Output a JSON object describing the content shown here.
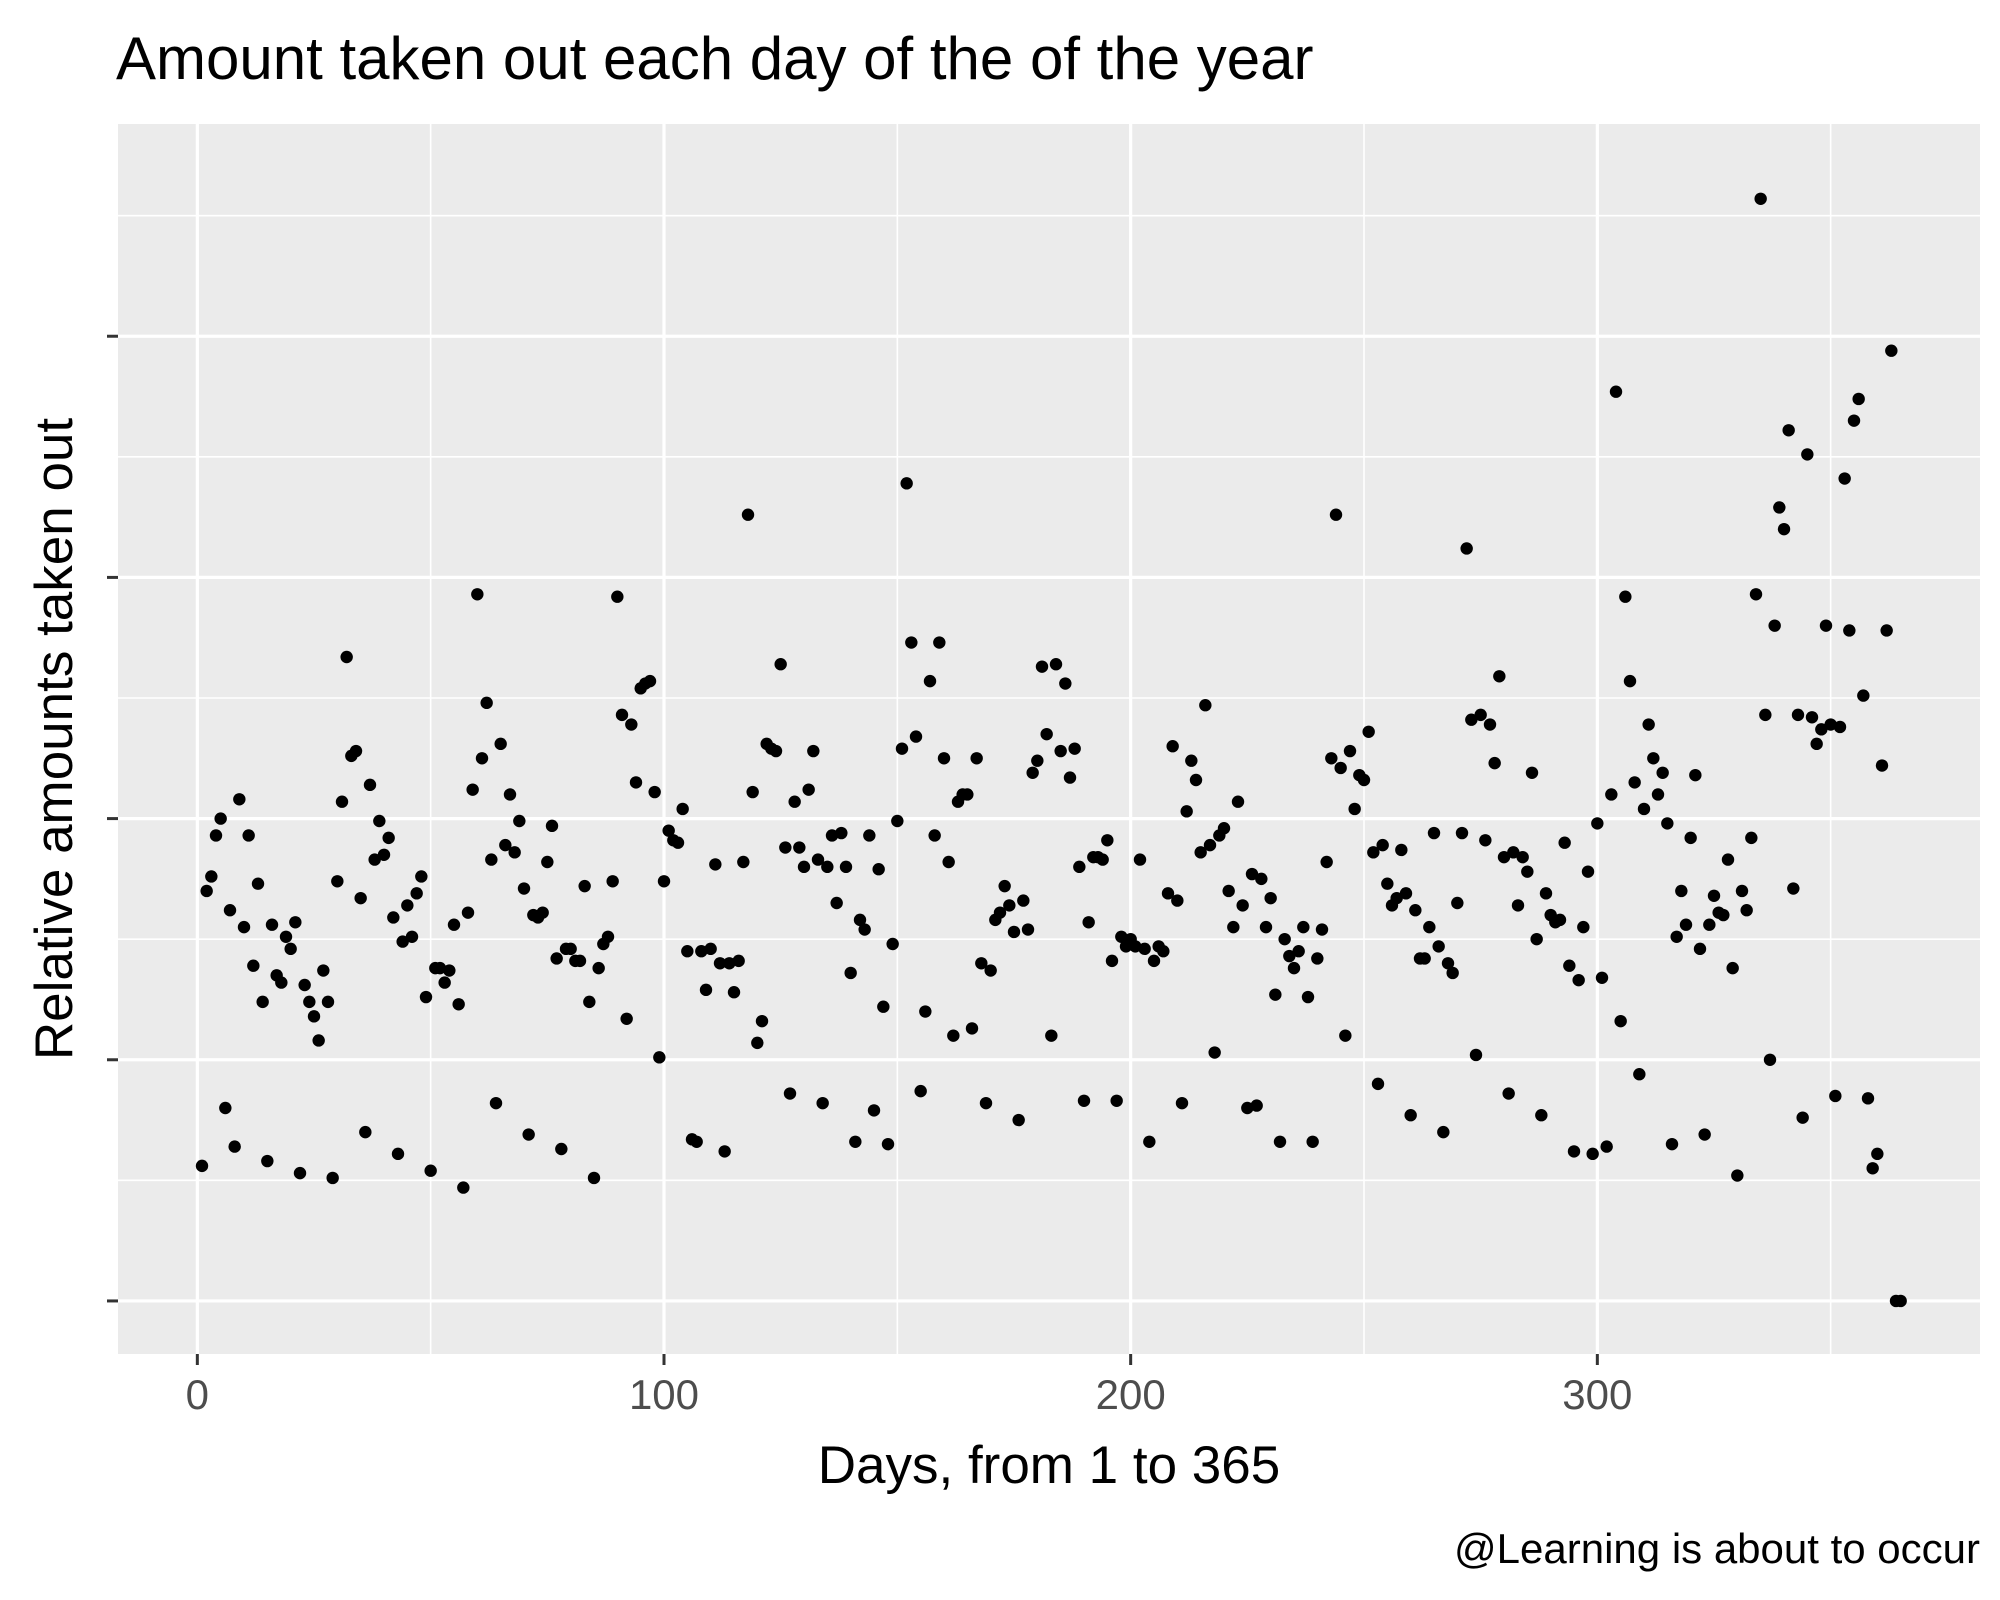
{
  "chart_data": {
    "type": "scatter",
    "title": "Amount taken out each day of the of the year",
    "xlabel": "Days, from 1 to 365",
    "ylabel": "Relative amounts taken out",
    "caption": "@Learning is about to occur",
    "xlim": [
      -17,
      382
    ],
    "ylim": [
      -0.22,
      4.88
    ],
    "x_ticks": [
      0,
      100,
      200,
      300
    ],
    "x_tick_labels": [
      "0",
      "100",
      "200",
      "300"
    ],
    "y_ticks": [
      0,
      1,
      2,
      3,
      4
    ],
    "y_tick_labels": [
      "",
      "",
      "",
      "",
      ""
    ],
    "grid": true,
    "legend": "none",
    "colors": {
      "panel": "#ebebeb",
      "grid": "#ffffff",
      "point": "#000000",
      "tick": "#333333"
    },
    "points": [
      [
        1,
        0.56
      ],
      [
        2,
        1.7
      ],
      [
        3,
        1.76
      ],
      [
        4,
        1.93
      ],
      [
        5,
        2.0
      ],
      [
        6,
        0.8
      ],
      [
        7,
        1.62
      ],
      [
        8,
        0.64
      ],
      [
        9,
        2.08
      ],
      [
        10,
        1.55
      ],
      [
        11,
        1.93
      ],
      [
        12,
        1.39
      ],
      [
        13,
        1.73
      ],
      [
        14,
        1.24
      ],
      [
        15,
        0.58
      ],
      [
        16,
        1.56
      ],
      [
        17,
        1.35
      ],
      [
        18,
        1.32
      ],
      [
        19,
        1.51
      ],
      [
        20,
        1.46
      ],
      [
        21,
        1.57
      ],
      [
        22,
        0.53
      ],
      [
        23,
        1.31
      ],
      [
        24,
        1.24
      ],
      [
        25,
        1.18
      ],
      [
        26,
        1.08
      ],
      [
        27,
        1.37
      ],
      [
        28,
        1.24
      ],
      [
        29,
        0.51
      ],
      [
        30,
        1.74
      ],
      [
        31,
        2.07
      ],
      [
        32,
        2.67
      ],
      [
        33,
        2.26
      ],
      [
        34,
        2.28
      ],
      [
        35,
        1.67
      ],
      [
        36,
        0.7
      ],
      [
        37,
        2.14
      ],
      [
        38,
        1.83
      ],
      [
        39,
        1.99
      ],
      [
        40,
        1.85
      ],
      [
        41,
        1.92
      ],
      [
        42,
        1.59
      ],
      [
        43,
        0.61
      ],
      [
        44,
        1.49
      ],
      [
        45,
        1.64
      ],
      [
        46,
        1.51
      ],
      [
        47,
        1.69
      ],
      [
        48,
        1.76
      ],
      [
        49,
        1.26
      ],
      [
        50,
        0.54
      ],
      [
        51,
        1.38
      ],
      [
        52,
        1.38
      ],
      [
        53,
        1.32
      ],
      [
        54,
        1.37
      ],
      [
        55,
        1.56
      ],
      [
        56,
        1.23
      ],
      [
        57,
        0.47
      ],
      [
        58,
        1.61
      ],
      [
        59,
        2.12
      ],
      [
        60,
        2.93
      ],
      [
        61,
        2.25
      ],
      [
        62,
        2.48
      ],
      [
        63,
        1.83
      ],
      [
        64,
        0.82
      ],
      [
        65,
        2.31
      ],
      [
        66,
        1.89
      ],
      [
        67,
        2.1
      ],
      [
        68,
        1.86
      ],
      [
        69,
        1.99
      ],
      [
        70,
        1.71
      ],
      [
        71,
        0.69
      ],
      [
        72,
        1.6
      ],
      [
        73,
        1.59
      ],
      [
        74,
        1.61
      ],
      [
        75,
        1.82
      ],
      [
        76,
        1.97
      ],
      [
        77,
        1.42
      ],
      [
        78,
        0.63
      ],
      [
        79,
        1.46
      ],
      [
        80,
        1.46
      ],
      [
        81,
        1.41
      ],
      [
        82,
        1.41
      ],
      [
        83,
        1.72
      ],
      [
        84,
        1.24
      ],
      [
        85,
        0.51
      ],
      [
        86,
        1.38
      ],
      [
        87,
        1.48
      ],
      [
        88,
        1.51
      ],
      [
        89,
        1.74
      ],
      [
        90,
        2.92
      ],
      [
        91,
        2.43
      ],
      [
        92,
        1.17
      ],
      [
        93,
        2.39
      ],
      [
        94,
        2.15
      ],
      [
        95,
        2.54
      ],
      [
        96,
        2.56
      ],
      [
        97,
        2.57
      ],
      [
        98,
        2.11
      ],
      [
        99,
        1.01
      ],
      [
        100,
        1.74
      ],
      [
        101,
        1.95
      ],
      [
        102,
        1.91
      ],
      [
        103,
        1.9
      ],
      [
        104,
        2.04
      ],
      [
        105,
        1.45
      ],
      [
        106,
        0.67
      ],
      [
        107,
        0.66
      ],
      [
        108,
        1.45
      ],
      [
        109,
        1.29
      ],
      [
        110,
        1.46
      ],
      [
        111,
        1.81
      ],
      [
        112,
        1.4
      ],
      [
        113,
        0.62
      ],
      [
        114,
        1.4
      ],
      [
        115,
        1.28
      ],
      [
        116,
        1.41
      ],
      [
        117,
        1.82
      ],
      [
        118,
        3.26
      ],
      [
        119,
        2.11
      ],
      [
        120,
        1.07
      ],
      [
        121,
        1.16
      ],
      [
        122,
        2.31
      ],
      [
        123,
        2.29
      ],
      [
        124,
        2.28
      ],
      [
        125,
        2.64
      ],
      [
        126,
        1.88
      ],
      [
        127,
        0.86
      ],
      [
        128,
        2.07
      ],
      [
        129,
        1.88
      ],
      [
        130,
        1.8
      ],
      [
        131,
        2.12
      ],
      [
        132,
        2.28
      ],
      [
        133,
        1.83
      ],
      [
        134,
        0.82
      ],
      [
        135,
        1.8
      ],
      [
        136,
        1.93
      ],
      [
        137,
        1.65
      ],
      [
        138,
        1.94
      ],
      [
        139,
        1.8
      ],
      [
        140,
        1.36
      ],
      [
        141,
        0.66
      ],
      [
        142,
        1.58
      ],
      [
        143,
        1.54
      ],
      [
        144,
        1.93
      ],
      [
        145,
        0.79
      ],
      [
        146,
        1.79
      ],
      [
        147,
        1.22
      ],
      [
        148,
        0.65
      ],
      [
        149,
        1.48
      ],
      [
        150,
        1.99
      ],
      [
        151,
        2.29
      ],
      [
        152,
        3.39
      ],
      [
        153,
        2.73
      ],
      [
        154,
        2.34
      ],
      [
        155,
        0.87
      ],
      [
        156,
        1.2
      ],
      [
        157,
        2.57
      ],
      [
        158,
        1.93
      ],
      [
        159,
        2.73
      ],
      [
        160,
        2.25
      ],
      [
        161,
        1.82
      ],
      [
        162,
        1.1
      ],
      [
        163,
        2.07
      ],
      [
        164,
        2.1
      ],
      [
        165,
        2.1
      ],
      [
        166,
        1.13
      ],
      [
        167,
        2.25
      ],
      [
        168,
        1.4
      ],
      [
        169,
        0.82
      ],
      [
        170,
        1.37
      ],
      [
        171,
        1.58
      ],
      [
        172,
        1.61
      ],
      [
        173,
        1.72
      ],
      [
        174,
        1.64
      ],
      [
        175,
        1.53
      ],
      [
        176,
        0.75
      ],
      [
        177,
        1.66
      ],
      [
        178,
        1.54
      ],
      [
        179,
        2.19
      ],
      [
        180,
        2.24
      ],
      [
        181,
        2.63
      ],
      [
        182,
        2.35
      ],
      [
        183,
        1.1
      ],
      [
        184,
        2.64
      ],
      [
        185,
        2.28
      ],
      [
        186,
        2.56
      ],
      [
        187,
        2.17
      ],
      [
        188,
        2.29
      ],
      [
        189,
        1.8
      ],
      [
        190,
        0.83
      ],
      [
        191,
        1.57
      ],
      [
        192,
        1.84
      ],
      [
        193,
        1.84
      ],
      [
        194,
        1.83
      ],
      [
        195,
        1.91
      ],
      [
        196,
        1.41
      ],
      [
        197,
        0.83
      ],
      [
        198,
        1.51
      ],
      [
        199,
        1.47
      ],
      [
        200,
        1.5
      ],
      [
        201,
        1.47
      ],
      [
        202,
        1.83
      ],
      [
        203,
        1.46
      ],
      [
        204,
        0.66
      ],
      [
        205,
        1.41
      ],
      [
        206,
        1.47
      ],
      [
        207,
        1.45
      ],
      [
        208,
        1.69
      ],
      [
        209,
        2.3
      ],
      [
        210,
        1.66
      ],
      [
        211,
        0.82
      ],
      [
        212,
        2.03
      ],
      [
        213,
        2.24
      ],
      [
        214,
        2.16
      ],
      [
        215,
        1.86
      ],
      [
        216,
        2.47
      ],
      [
        217,
        1.89
      ],
      [
        218,
        1.03
      ],
      [
        219,
        1.93
      ],
      [
        220,
        1.96
      ],
      [
        221,
        1.7
      ],
      [
        222,
        1.55
      ],
      [
        223,
        2.07
      ],
      [
        224,
        1.64
      ],
      [
        225,
        0.8
      ],
      [
        226,
        1.77
      ],
      [
        227,
        0.81
      ],
      [
        228,
        1.75
      ],
      [
        229,
        1.55
      ],
      [
        230,
        1.67
      ],
      [
        231,
        1.27
      ],
      [
        232,
        0.66
      ],
      [
        233,
        1.5
      ],
      [
        234,
        1.43
      ],
      [
        235,
        1.38
      ],
      [
        236,
        1.45
      ],
      [
        237,
        1.55
      ],
      [
        238,
        1.26
      ],
      [
        239,
        0.66
      ],
      [
        240,
        1.42
      ],
      [
        241,
        1.54
      ],
      [
        242,
        1.82
      ],
      [
        243,
        2.25
      ],
      [
        244,
        3.26
      ],
      [
        245,
        2.21
      ],
      [
        246,
        1.1
      ],
      [
        247,
        2.28
      ],
      [
        248,
        2.04
      ],
      [
        249,
        2.18
      ],
      [
        250,
        2.16
      ],
      [
        251,
        2.36
      ],
      [
        252,
        1.86
      ],
      [
        253,
        0.9
      ],
      [
        254,
        1.89
      ],
      [
        255,
        1.73
      ],
      [
        256,
        1.64
      ],
      [
        257,
        1.67
      ],
      [
        258,
        1.87
      ],
      [
        259,
        1.69
      ],
      [
        260,
        0.77
      ],
      [
        261,
        1.62
      ],
      [
        262,
        1.42
      ],
      [
        263,
        1.42
      ],
      [
        264,
        1.55
      ],
      [
        265,
        1.94
      ],
      [
        266,
        1.47
      ],
      [
        267,
        0.7
      ],
      [
        268,
        1.4
      ],
      [
        269,
        1.36
      ],
      [
        270,
        1.65
      ],
      [
        271,
        1.94
      ],
      [
        272,
        3.12
      ],
      [
        273,
        2.41
      ],
      [
        274,
        1.02
      ],
      [
        275,
        2.43
      ],
      [
        276,
        1.91
      ],
      [
        277,
        2.39
      ],
      [
        278,
        2.23
      ],
      [
        279,
        2.59
      ],
      [
        280,
        1.84
      ],
      [
        281,
        0.86
      ],
      [
        282,
        1.86
      ],
      [
        283,
        1.64
      ],
      [
        284,
        1.84
      ],
      [
        285,
        1.78
      ],
      [
        286,
        2.19
      ],
      [
        287,
        1.5
      ],
      [
        288,
        0.77
      ],
      [
        289,
        1.69
      ],
      [
        290,
        1.6
      ],
      [
        291,
        1.57
      ],
      [
        292,
        1.58
      ],
      [
        293,
        1.9
      ],
      [
        294,
        1.39
      ],
      [
        295,
        0.62
      ],
      [
        296,
        1.33
      ],
      [
        297,
        1.55
      ],
      [
        298,
        1.78
      ],
      [
        299,
        0.61
      ],
      [
        300,
        1.98
      ],
      [
        301,
        1.34
      ],
      [
        302,
        0.64
      ],
      [
        303,
        2.1
      ],
      [
        304,
        3.77
      ],
      [
        305,
        1.16
      ],
      [
        306,
        2.92
      ],
      [
        307,
        2.57
      ],
      [
        308,
        2.15
      ],
      [
        309,
        0.94
      ],
      [
        310,
        2.04
      ],
      [
        311,
        2.39
      ],
      [
        312,
        2.25
      ],
      [
        313,
        2.1
      ],
      [
        314,
        2.19
      ],
      [
        315,
        1.98
      ],
      [
        316,
        0.65
      ],
      [
        317,
        1.51
      ],
      [
        318,
        1.7
      ],
      [
        319,
        1.56
      ],
      [
        320,
        1.92
      ],
      [
        321,
        2.18
      ],
      [
        322,
        1.46
      ],
      [
        323,
        0.69
      ],
      [
        324,
        1.56
      ],
      [
        325,
        1.68
      ],
      [
        326,
        1.61
      ],
      [
        327,
        1.6
      ],
      [
        328,
        1.83
      ],
      [
        329,
        1.38
      ],
      [
        330,
        0.52
      ],
      [
        331,
        1.7
      ],
      [
        332,
        1.62
      ],
      [
        333,
        1.92
      ],
      [
        334,
        2.93
      ],
      [
        335,
        4.57
      ],
      [
        336,
        2.43
      ],
      [
        337,
        1.0
      ],
      [
        338,
        2.8
      ],
      [
        339,
        3.29
      ],
      [
        340,
        3.2
      ],
      [
        341,
        3.61
      ],
      [
        342,
        1.71
      ],
      [
        343,
        2.43
      ],
      [
        344,
        0.76
      ],
      [
        345,
        3.51
      ],
      [
        346,
        2.42
      ],
      [
        347,
        2.31
      ],
      [
        348,
        2.37
      ],
      [
        349,
        2.8
      ],
      [
        350,
        2.39
      ],
      [
        351,
        0.85
      ],
      [
        352,
        2.38
      ],
      [
        353,
        3.41
      ],
      [
        354,
        2.78
      ],
      [
        355,
        3.65
      ],
      [
        356,
        3.74
      ],
      [
        357,
        2.51
      ],
      [
        358,
        0.84
      ],
      [
        359,
        0.55
      ],
      [
        360,
        0.61
      ],
      [
        361,
        2.22
      ],
      [
        362,
        2.78
      ],
      [
        363,
        3.94
      ],
      [
        364,
        0.0
      ],
      [
        365,
        0.0
      ]
    ]
  }
}
